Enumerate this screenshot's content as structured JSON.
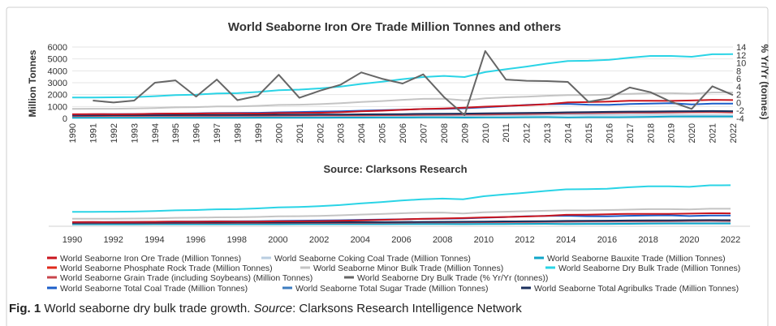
{
  "caption": {
    "fig_label": "Fig. 1",
    "text": "World seaborne dry bulk trade growth.",
    "source_label": "Source",
    "source_text": ": Clarksons Research Intelligence Network"
  },
  "legend": [
    {
      "name": "World Seaborne Iron Ore Trade (Million Tonnes)",
      "color": "#c9151e"
    },
    {
      "name": "World Seaborne Coking Coal Trade (Million Tonnes)",
      "color": "#b9cde0"
    },
    {
      "name": "World Seaborne Bauxite Trade (Million Tonnes)",
      "color": "#10a6c9"
    },
    {
      "name": "World Seaborne Phosphate Rock Trade (Million Tonnes)",
      "color": "#e02a1b"
    },
    {
      "name": "World Seaborne Minor Bulk Trade (Million Tonnes)",
      "color": "#c4c4c4"
    },
    {
      "name": "World Seaborne Dry Bulk Trade (Million Tonnes)",
      "color": "#2ad4e6"
    },
    {
      "name": "World Seaborne Grain Trade (including Soybeans) (Million Tonnes)",
      "color": "#c8464c"
    },
    {
      "name": "World Seaborne Dry Bulk Trade (% Yr/Yr (tonnes))",
      "color": "#666666"
    },
    {
      "name": "World Seaborne Total Coal Trade (Million Tonnes)",
      "color": "#1d5fc9"
    },
    {
      "name": "World Seaborne Total Sugar Trade (Million Tonnes)",
      "color": "#3e7dc0"
    },
    {
      "name": "World Seaborne Total Agribulks Trade (Million Tonnes)",
      "color": "#1b2f5c"
    }
  ],
  "chart_data": [
    {
      "type": "line",
      "title": "World Seaborne Iron Ore Trade Million Tonnes and others",
      "ylabel": "Million Tonnes",
      "y2label": "% Yr/Yr (tonnes)",
      "ylim": [
        0,
        6000
      ],
      "y2lim": [
        -4,
        14
      ],
      "yticks": [
        0,
        1000,
        2000,
        3000,
        4000,
        5000,
        6000
      ],
      "y2ticks": [
        -4,
        -2,
        0,
        2,
        4,
        6,
        8,
        10,
        12,
        14
      ],
      "x": [
        1990,
        1991,
        1992,
        1993,
        1994,
        1995,
        1996,
        1997,
        1998,
        1999,
        2000,
        2001,
        2002,
        2003,
        2004,
        2005,
        2006,
        2007,
        2008,
        2009,
        2010,
        2011,
        2012,
        2013,
        2014,
        2015,
        2016,
        2017,
        2018,
        2019,
        2020,
        2021,
        2022
      ],
      "series": [
        {
          "name": "World Seaborne Dry Bulk Trade (Million Tonnes)",
          "axis": "left",
          "values": [
            1750,
            1760,
            1770,
            1790,
            1870,
            1960,
            2000,
            2100,
            2120,
            2220,
            2370,
            2420,
            2520,
            2680,
            2900,
            3080,
            3300,
            3480,
            3570,
            3480,
            3890,
            4130,
            4360,
            4610,
            4830,
            4850,
            4920,
            5110,
            5250,
            5250,
            5180,
            5390,
            5400
          ]
        },
        {
          "name": "World Seaborne Minor Bulk Trade (Million Tonnes)",
          "axis": "left",
          "values": [
            800,
            810,
            810,
            830,
            870,
            930,
            950,
            1000,
            1010,
            1060,
            1130,
            1150,
            1200,
            1280,
            1380,
            1460,
            1560,
            1640,
            1650,
            1520,
            1690,
            1770,
            1830,
            1900,
            1960,
            1960,
            2000,
            2060,
            2120,
            2120,
            2080,
            2180,
            2180
          ]
        },
        {
          "name": "World Seaborne Iron Ore Trade (Million Tonnes)",
          "axis": "left",
          "values": [
            350,
            360,
            350,
            360,
            390,
            410,
            400,
            430,
            420,
            410,
            450,
            460,
            480,
            520,
            590,
            650,
            720,
            790,
            840,
            900,
            990,
            1050,
            1110,
            1190,
            1340,
            1370,
            1420,
            1480,
            1480,
            1470,
            1510,
            1560,
            1540
          ]
        },
        {
          "name": "World Seaborne Total Coal Trade (Million Tonnes)",
          "axis": "left",
          "values": [
            330,
            350,
            360,
            370,
            390,
            410,
            430,
            450,
            460,
            470,
            510,
            540,
            570,
            600,
            650,
            690,
            730,
            790,
            800,
            850,
            940,
            1030,
            1130,
            1190,
            1220,
            1150,
            1140,
            1210,
            1250,
            1280,
            1180,
            1240,
            1240
          ]
        },
        {
          "name": "World Seaborne Coking Coal Trade (Million Tonnes)",
          "axis": "left",
          "values": [
            150,
            155,
            150,
            150,
            155,
            160,
            165,
            170,
            170,
            165,
            170,
            175,
            180,
            185,
            190,
            195,
            200,
            210,
            215,
            200,
            250,
            260,
            270,
            300,
            310,
            300,
            300,
            300,
            300,
            300,
            270,
            270,
            260
          ]
        },
        {
          "name": "World Seaborne Grain Trade (including Soybeans) (Million Tonnes)",
          "axis": "left",
          "values": [
            200,
            205,
            210,
            210,
            215,
            220,
            220,
            225,
            230,
            235,
            240,
            245,
            250,
            255,
            260,
            270,
            280,
            300,
            310,
            320,
            330,
            350,
            370,
            390,
            420,
            440,
            460,
            480,
            480,
            490,
            510,
            520,
            500
          ]
        },
        {
          "name": "World Seaborne Total Agribulks Trade (Million Tonnes)",
          "axis": "left",
          "values": [
            260,
            265,
            270,
            270,
            275,
            280,
            285,
            290,
            295,
            300,
            305,
            310,
            320,
            330,
            340,
            350,
            360,
            380,
            390,
            400,
            420,
            440,
            460,
            480,
            510,
            530,
            550,
            570,
            580,
            590,
            610,
            620,
            610
          ]
        },
        {
          "name": "World Seaborne Bauxite Trade (Million Tonnes)",
          "axis": "left",
          "values": [
            50,
            50,
            50,
            50,
            52,
            55,
            55,
            56,
            57,
            58,
            60,
            62,
            63,
            65,
            68,
            72,
            75,
            80,
            85,
            70,
            80,
            90,
            100,
            110,
            90,
            100,
            100,
            110,
            130,
            150,
            160,
            160,
            160
          ]
        },
        {
          "name": "World Seaborne Dry Bulk Trade (% Yr/Yr (tonnes))",
          "axis": "right",
          "values": [
            null,
            0.5,
            0,
            0.5,
            5,
            5.6,
            1.5,
            5.8,
            0.6,
            1.7,
            7,
            1.2,
            3,
            4.5,
            7.6,
            6,
            4.8,
            7.1,
            1.4,
            -3.2,
            13,
            5.8,
            5.5,
            5.4,
            5.2,
            0.2,
            1.1,
            3.8,
            2.6,
            0.2,
            -1.6,
            4.1,
            1.9
          ]
        }
      ]
    },
    {
      "type": "line",
      "title": "Source: Clarksons Research",
      "xticks": [
        1990,
        1992,
        1994,
        1996,
        1998,
        2000,
        2002,
        2004,
        2006,
        2008,
        2010,
        2012,
        2014,
        2016,
        2018,
        2020,
        2022
      ]
    }
  ]
}
